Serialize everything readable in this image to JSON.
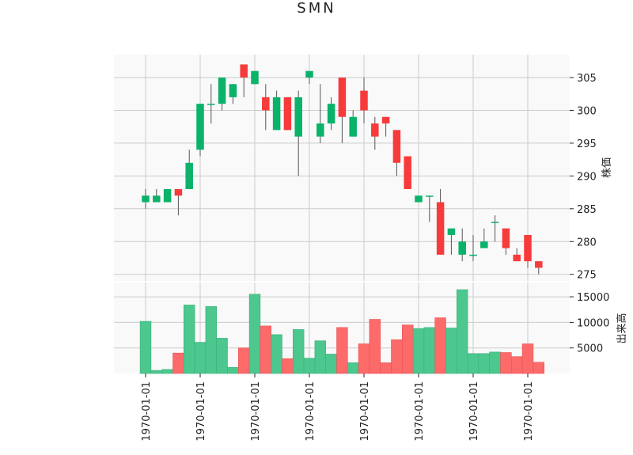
{
  "chart_data": {
    "type": "candlestick",
    "title": "SMN",
    "price_panel": {
      "ylabel": "株価",
      "yticks": [
        275,
        280,
        285,
        290,
        295,
        300,
        305
      ],
      "ylim": [
        274,
        308.5
      ]
    },
    "volume_panel": {
      "ylabel": "出来高",
      "yticks": [
        5000,
        10000,
        15000
      ],
      "ylim": [
        0,
        17800
      ]
    },
    "x_tick_labels": [
      "1970-01-01",
      "1970-01-01",
      "1970-01-01",
      "1970-01-01",
      "1970-01-01",
      "1970-01-01",
      "1970-01-01",
      "1970-01-01"
    ],
    "x_tick_indices": [
      0,
      5,
      10,
      15,
      20,
      25,
      30,
      35
    ],
    "grid": true,
    "colors": {
      "up": "#0ab26a",
      "down": "#f73b3b",
      "up_volume": "#4cc78e",
      "down_volume": "#fc6a6a",
      "background": "#f9f9f9",
      "grid": "#cccccc"
    },
    "candles": [
      {
        "open": 286,
        "high": 288,
        "low": 285,
        "close": 287,
        "volume": 10200
      },
      {
        "open": 286,
        "high": 288,
        "low": 286,
        "close": 287,
        "volume": 600
      },
      {
        "open": 286,
        "high": 288,
        "low": 286,
        "close": 288,
        "volume": 800
      },
      {
        "open": 288,
        "high": 288,
        "low": 284,
        "close": 287,
        "volume": 4000
      },
      {
        "open": 288,
        "high": 294,
        "low": 288,
        "close": 292,
        "volume": 13400
      },
      {
        "open": 294,
        "high": 301,
        "low": 293,
        "close": 301,
        "volume": 6100
      },
      {
        "open": 301,
        "high": 304,
        "low": 298,
        "close": 301,
        "volume": 13100
      },
      {
        "open": 301,
        "high": 305,
        "low": 300,
        "close": 305,
        "volume": 6900
      },
      {
        "open": 302,
        "high": 304,
        "low": 301,
        "close": 304,
        "volume": 1200
      },
      {
        "open": 307,
        "high": 307,
        "low": 302,
        "close": 305,
        "volume": 5000
      },
      {
        "open": 304,
        "high": 306,
        "low": 304,
        "close": 306,
        "volume": 15500
      },
      {
        "open": 302,
        "high": 304,
        "low": 297,
        "close": 300,
        "volume": 9300
      },
      {
        "open": 297,
        "high": 303,
        "low": 297,
        "close": 302,
        "volume": 7600
      },
      {
        "open": 302,
        "high": 302,
        "low": 297,
        "close": 297,
        "volume": 2900
      },
      {
        "open": 296,
        "high": 303,
        "low": 290,
        "close": 302,
        "volume": 8600
      },
      {
        "open": 305,
        "high": 306,
        "low": 304,
        "close": 306,
        "volume": 3000
      },
      {
        "open": 296,
        "high": 304,
        "low": 295,
        "close": 298,
        "volume": 6400
      },
      {
        "open": 298,
        "high": 302,
        "low": 297,
        "close": 301,
        "volume": 3800
      },
      {
        "open": 305,
        "high": 305,
        "low": 295,
        "close": 299,
        "volume": 9000
      },
      {
        "open": 296,
        "high": 300,
        "low": 296,
        "close": 299,
        "volume": 2100
      },
      {
        "open": 303,
        "high": 305,
        "low": 298,
        "close": 300,
        "volume": 5800
      },
      {
        "open": 298,
        "high": 299,
        "low": 294,
        "close": 296,
        "volume": 10600
      },
      {
        "open": 299,
        "high": 299,
        "low": 296,
        "close": 298,
        "volume": 2100
      },
      {
        "open": 297,
        "high": 297,
        "low": 290,
        "close": 292,
        "volume": 6600
      },
      {
        "open": 293,
        "high": 293,
        "low": 288,
        "close": 288,
        "volume": 9500
      },
      {
        "open": 286,
        "high": 287,
        "low": 286,
        "close": 287,
        "volume": 8800
      },
      {
        "open": 287,
        "high": 287,
        "low": 283,
        "close": 287,
        "volume": 9000
      },
      {
        "open": 286,
        "high": 288,
        "low": 278,
        "close": 278,
        "volume": 10900
      },
      {
        "open": 281,
        "high": 282,
        "low": 278,
        "close": 282,
        "volume": 8900
      },
      {
        "open": 278,
        "high": 282,
        "low": 277,
        "close": 280,
        "volume": 16400
      },
      {
        "open": 278,
        "high": 281,
        "low": 277,
        "close": 278,
        "volume": 3900
      },
      {
        "open": 279,
        "high": 282,
        "low": 279,
        "close": 280,
        "volume": 3900
      },
      {
        "open": 283,
        "high": 284,
        "low": 280,
        "close": 283,
        "volume": 4200
      },
      {
        "open": 282,
        "high": 282,
        "low": 278,
        "close": 279,
        "volume": 4100
      },
      {
        "open": 278,
        "high": 279,
        "low": 277,
        "close": 277,
        "volume": 3300
      },
      {
        "open": 281,
        "high": 281,
        "low": 276,
        "close": 277,
        "volume": 5800
      },
      {
        "open": 277,
        "high": 277,
        "low": 275,
        "close": 276,
        "volume": 2200
      }
    ]
  }
}
